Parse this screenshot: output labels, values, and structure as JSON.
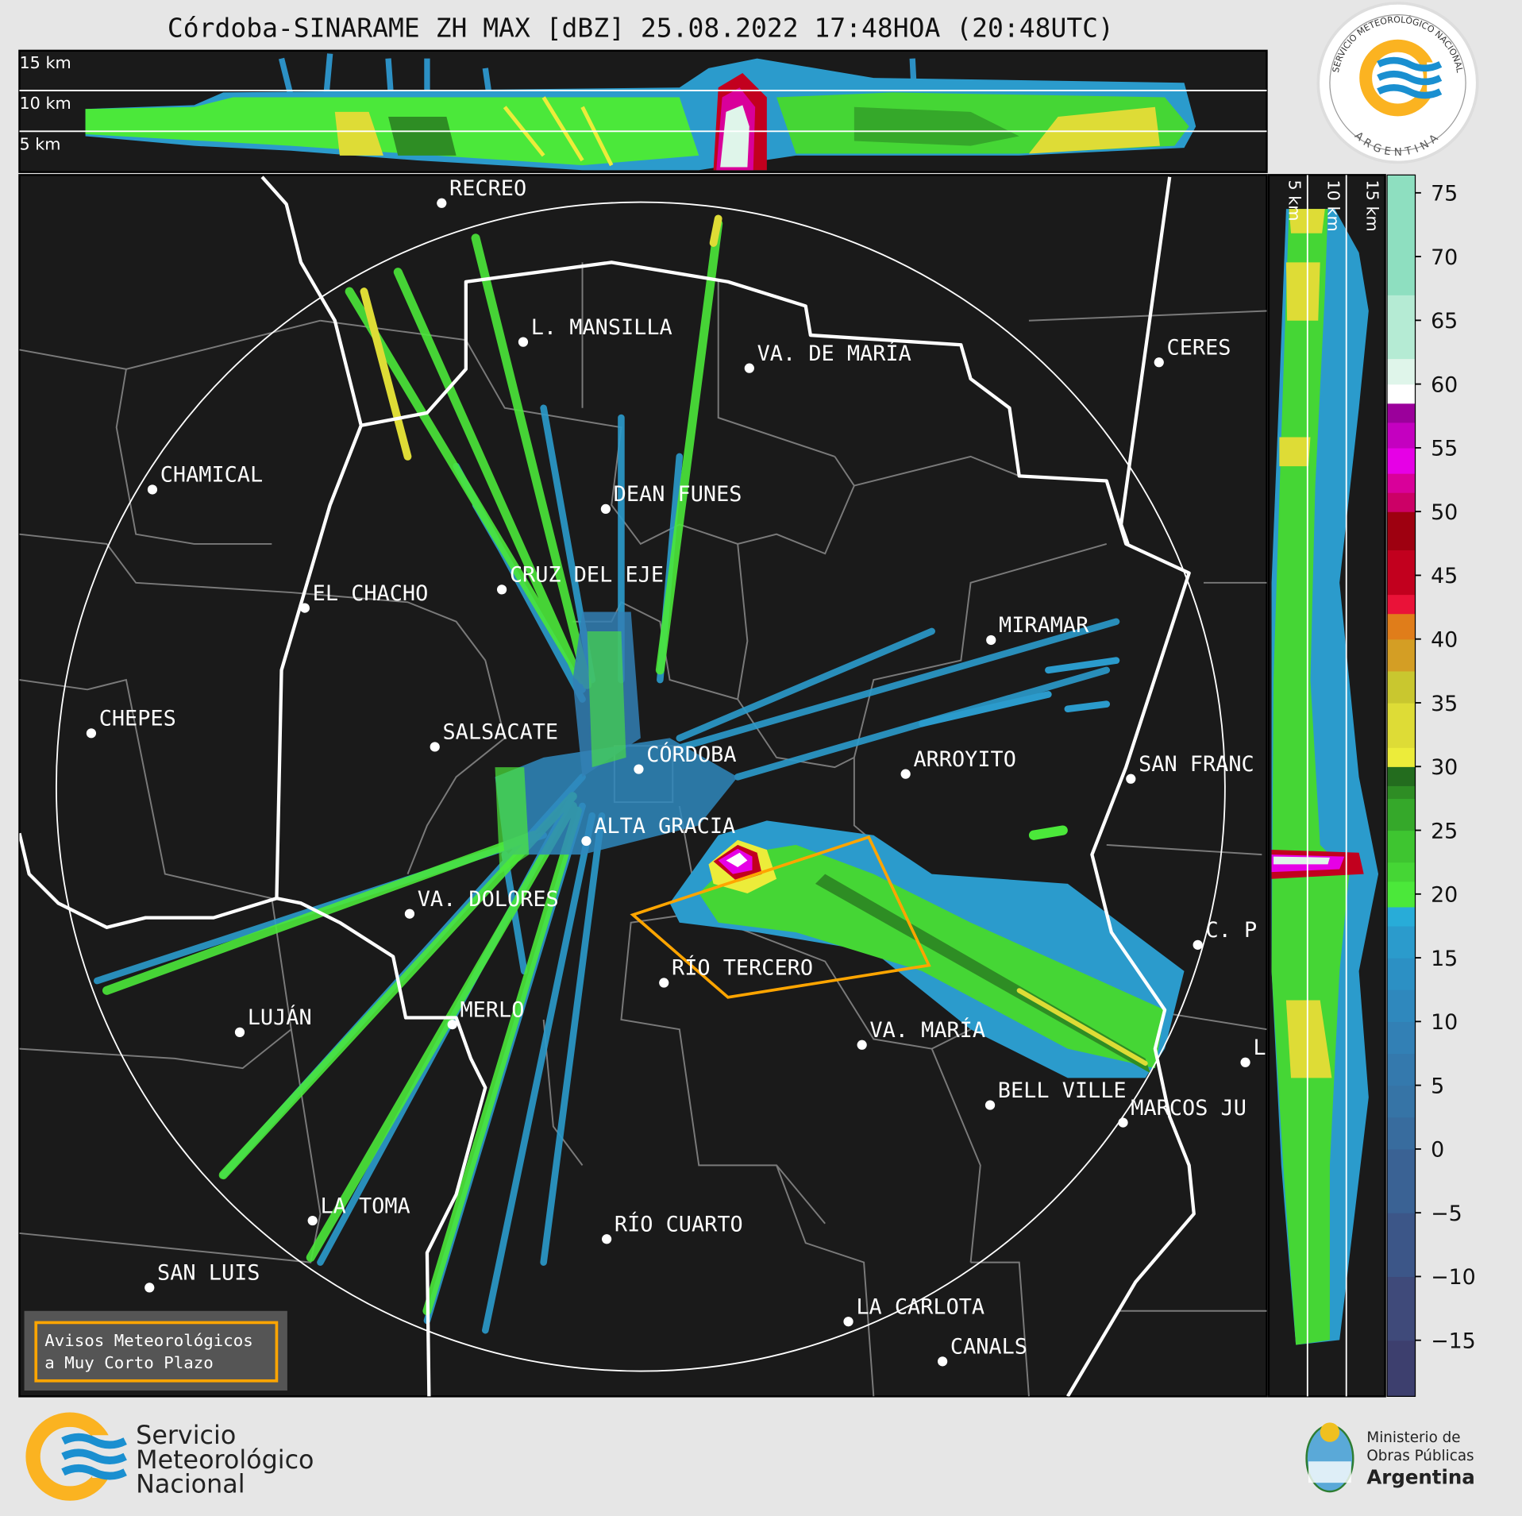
{
  "title": "Córdoba-SINARAME ZH MAX [dBZ] 25.08.2022 17:48HOA (20:48UTC)",
  "top_panel": {
    "height_labels": [
      "15 km",
      "10 km",
      "5 km"
    ]
  },
  "side_panel": {
    "height_labels": [
      "5 km",
      "10 km",
      "15 km"
    ]
  },
  "colorbar": {
    "unit": "dBZ",
    "ticks": [
      75,
      70,
      65,
      60,
      55,
      50,
      45,
      40,
      35,
      30,
      25,
      20,
      15,
      10,
      5,
      0,
      -5,
      -10,
      -15
    ],
    "tick_labels": [
      "75",
      "70",
      "65",
      "60",
      "55",
      "50",
      "45",
      "40",
      "35",
      "30",
      "25",
      "20",
      "15",
      "10",
      "5",
      "0",
      "−5",
      "−10",
      "−15"
    ],
    "range": [
      -19.4,
      76.4
    ],
    "bands": [
      [
        -19.4,
        -15,
        "#3d3f6e"
      ],
      [
        -15,
        -10,
        "#3f4a7a"
      ],
      [
        -10,
        -5,
        "#3c5688"
      ],
      [
        -5,
        0,
        "#3a6294"
      ],
      [
        0,
        2.5,
        "#386c9e"
      ],
      [
        2.5,
        5,
        "#3674a6"
      ],
      [
        5,
        7.5,
        "#3479ad"
      ],
      [
        7.5,
        10,
        "#3280b5"
      ],
      [
        10,
        12.5,
        "#2f88bd"
      ],
      [
        12.5,
        15,
        "#2c90c4"
      ],
      [
        15,
        17.5,
        "#2b9bcc"
      ],
      [
        17.5,
        19,
        "#28acd8"
      ],
      [
        19,
        21,
        "#4be83a"
      ],
      [
        21,
        22.5,
        "#45d635"
      ],
      [
        22.5,
        25,
        "#3ec530"
      ],
      [
        25,
        27.5,
        "#35a82a"
      ],
      [
        27.5,
        28.5,
        "#2e8d24"
      ],
      [
        28.5,
        30,
        "#236c1e"
      ],
      [
        30,
        31.5,
        "#ecec3a"
      ],
      [
        31.5,
        35,
        "#dedc36"
      ],
      [
        35,
        37.5,
        "#c9c72f"
      ],
      [
        37.5,
        40,
        "#d49e24"
      ],
      [
        40,
        42,
        "#e07d1a"
      ],
      [
        42,
        43.5,
        "#ea1238"
      ],
      [
        43.5,
        47,
        "#c2001e"
      ],
      [
        47,
        50,
        "#9e0010"
      ],
      [
        50,
        51.5,
        "#cc0066"
      ],
      [
        51.5,
        53,
        "#d9009a"
      ],
      [
        53,
        55,
        "#e600e6"
      ],
      [
        55,
        57,
        "#c400c0"
      ],
      [
        57,
        58.5,
        "#9b009b"
      ],
      [
        58.5,
        60,
        "#ffffff"
      ],
      [
        60,
        62,
        "#dff5ea"
      ],
      [
        62,
        67,
        "#b5ebd4"
      ],
      [
        67,
        76.4,
        "#8edfc0"
      ]
    ]
  },
  "cities": [
    {
      "name": "RECREO"
    },
    {
      "name": "L. MANSILLA"
    },
    {
      "name": "VA. DE MARÍA"
    },
    {
      "name": "CERES"
    },
    {
      "name": "CHAMICAL"
    },
    {
      "name": "DEAN FUNES"
    },
    {
      "name": "CRUZ DEL EJE"
    },
    {
      "name": "EL CHACHO"
    },
    {
      "name": "MIRAMAR"
    },
    {
      "name": "CHEPES"
    },
    {
      "name": "SALSACATE"
    },
    {
      "name": "CÓRDOBA"
    },
    {
      "name": "ARROYITO"
    },
    {
      "name": "SAN FRANC"
    },
    {
      "name": "ALTA GRACIA"
    },
    {
      "name": "VA. DOLORES"
    },
    {
      "name": "C. P"
    },
    {
      "name": "RÍO TERCERO"
    },
    {
      "name": "LUJÁN"
    },
    {
      "name": "MERLO"
    },
    {
      "name": "VA. MARÍA"
    },
    {
      "name": "L"
    },
    {
      "name": "BELL VILLE"
    },
    {
      "name": "MARCOS JU"
    },
    {
      "name": "LA TOMA"
    },
    {
      "name": "RÍO CUARTO"
    },
    {
      "name": "SAN LUIS"
    },
    {
      "name": "LA CARLOTA"
    },
    {
      "name": "CANALS"
    }
  ],
  "warning_legend": {
    "line1": "Avisos Meteorológicos",
    "line2": "a Muy Corto Plazo",
    "color": "#ffa500"
  },
  "logos": {
    "seal_top": "SERVICIO METEOROLÓGICO NACIONAL",
    "seal_bottom": "ARGENTINA",
    "smn": [
      "Servicio",
      "Meteorológico",
      "Nacional"
    ],
    "ministry": [
      "Ministerio de",
      "Obras Públicas",
      "Argentina"
    ]
  },
  "colors": {
    "map_bg": "#1a1a1a",
    "page_bg": "#e6e6e6",
    "warning": "#ffa500",
    "smn_orange": "#fbb321",
    "smn_blue": "#1a8fd0"
  }
}
